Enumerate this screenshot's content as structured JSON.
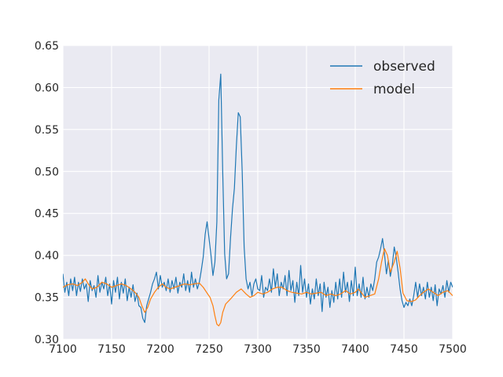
{
  "chart_data": {
    "type": "line",
    "title": "",
    "xlabel": "",
    "ylabel": "",
    "xlim": [
      7100,
      7500
    ],
    "ylim": [
      0.3,
      0.65
    ],
    "x_ticks": [
      7100,
      7150,
      7200,
      7250,
      7300,
      7350,
      7400,
      7450,
      7500
    ],
    "y_ticks": [
      0.3,
      0.35,
      0.4,
      0.45,
      0.5,
      0.55,
      0.6,
      0.65
    ],
    "x_tick_labels": [
      "7100",
      "7150",
      "7200",
      "7250",
      "7300",
      "7350",
      "7400",
      "7450",
      "7500"
    ],
    "y_tick_labels": [
      "0.30",
      "0.35",
      "0.40",
      "0.45",
      "0.50",
      "0.55",
      "0.60",
      "0.65"
    ],
    "grid": true,
    "legend_position": "top-right",
    "series": [
      {
        "name": "observed",
        "color": "#1f77b4",
        "points": [
          [
            7100,
            0.378
          ],
          [
            7102,
            0.356
          ],
          [
            7104,
            0.368
          ],
          [
            7106,
            0.352
          ],
          [
            7108,
            0.372
          ],
          [
            7110,
            0.358
          ],
          [
            7112,
            0.374
          ],
          [
            7114,
            0.352
          ],
          [
            7116,
            0.368
          ],
          [
            7118,
            0.357
          ],
          [
            7120,
            0.372
          ],
          [
            7122,
            0.36
          ],
          [
            7124,
            0.366
          ],
          [
            7126,
            0.345
          ],
          [
            7128,
            0.37
          ],
          [
            7130,
            0.358
          ],
          [
            7132,
            0.364
          ],
          [
            7134,
            0.35
          ],
          [
            7136,
            0.376
          ],
          [
            7138,
            0.356
          ],
          [
            7140,
            0.368
          ],
          [
            7142,
            0.36
          ],
          [
            7144,
            0.374
          ],
          [
            7146,
            0.352
          ],
          [
            7148,
            0.366
          ],
          [
            7150,
            0.342
          ],
          [
            7152,
            0.37
          ],
          [
            7154,
            0.356
          ],
          [
            7156,
            0.374
          ],
          [
            7158,
            0.348
          ],
          [
            7160,
            0.368
          ],
          [
            7162,
            0.355
          ],
          [
            7164,
            0.372
          ],
          [
            7166,
            0.346
          ],
          [
            7168,
            0.362
          ],
          [
            7170,
            0.35
          ],
          [
            7172,
            0.365
          ],
          [
            7174,
            0.345
          ],
          [
            7176,
            0.355
          ],
          [
            7178,
            0.34
          ],
          [
            7180,
            0.338
          ],
          [
            7182,
            0.325
          ],
          [
            7184,
            0.32
          ],
          [
            7186,
            0.34
          ],
          [
            7188,
            0.348
          ],
          [
            7190,
            0.356
          ],
          [
            7192,
            0.366
          ],
          [
            7194,
            0.372
          ],
          [
            7196,
            0.38
          ],
          [
            7198,
            0.36
          ],
          [
            7200,
            0.376
          ],
          [
            7202,
            0.362
          ],
          [
            7204,
            0.368
          ],
          [
            7206,
            0.358
          ],
          [
            7208,
            0.372
          ],
          [
            7210,
            0.356
          ],
          [
            7212,
            0.37
          ],
          [
            7214,
            0.36
          ],
          [
            7216,
            0.374
          ],
          [
            7218,
            0.355
          ],
          [
            7220,
            0.368
          ],
          [
            7222,
            0.362
          ],
          [
            7224,
            0.378
          ],
          [
            7226,
            0.358
          ],
          [
            7228,
            0.37
          ],
          [
            7230,
            0.356
          ],
          [
            7232,
            0.38
          ],
          [
            7234,
            0.362
          ],
          [
            7236,
            0.372
          ],
          [
            7238,
            0.36
          ],
          [
            7240,
            0.368
          ],
          [
            7242,
            0.382
          ],
          [
            7244,
            0.398
          ],
          [
            7246,
            0.425
          ],
          [
            7248,
            0.44
          ],
          [
            7250,
            0.42
          ],
          [
            7252,
            0.4
          ],
          [
            7254,
            0.376
          ],
          [
            7256,
            0.392
          ],
          [
            7258,
            0.44
          ],
          [
            7260,
            0.585
          ],
          [
            7262,
            0.616
          ],
          [
            7264,
            0.5
          ],
          [
            7266,
            0.402
          ],
          [
            7268,
            0.372
          ],
          [
            7270,
            0.378
          ],
          [
            7272,
            0.42
          ],
          [
            7274,
            0.455
          ],
          [
            7276,
            0.48
          ],
          [
            7278,
            0.53
          ],
          [
            7280,
            0.57
          ],
          [
            7282,
            0.565
          ],
          [
            7284,
            0.5
          ],
          [
            7286,
            0.41
          ],
          [
            7288,
            0.372
          ],
          [
            7290,
            0.36
          ],
          [
            7292,
            0.368
          ],
          [
            7294,
            0.352
          ],
          [
            7296,
            0.366
          ],
          [
            7298,
            0.372
          ],
          [
            7300,
            0.36
          ],
          [
            7302,
            0.358
          ],
          [
            7304,
            0.376
          ],
          [
            7306,
            0.35
          ],
          [
            7308,
            0.362
          ],
          [
            7310,
            0.358
          ],
          [
            7312,
            0.372
          ],
          [
            7314,
            0.356
          ],
          [
            7316,
            0.384
          ],
          [
            7318,
            0.362
          ],
          [
            7320,
            0.378
          ],
          [
            7322,
            0.352
          ],
          [
            7324,
            0.368
          ],
          [
            7326,
            0.36
          ],
          [
            7328,
            0.376
          ],
          [
            7330,
            0.352
          ],
          [
            7332,
            0.382
          ],
          [
            7334,
            0.358
          ],
          [
            7336,
            0.37
          ],
          [
            7338,
            0.344
          ],
          [
            7340,
            0.368
          ],
          [
            7342,
            0.352
          ],
          [
            7344,
            0.388
          ],
          [
            7346,
            0.356
          ],
          [
            7348,
            0.372
          ],
          [
            7350,
            0.35
          ],
          [
            7352,
            0.366
          ],
          [
            7354,
            0.342
          ],
          [
            7356,
            0.36
          ],
          [
            7358,
            0.348
          ],
          [
            7360,
            0.372
          ],
          [
            7362,
            0.352
          ],
          [
            7364,
            0.366
          ],
          [
            7366,
            0.333
          ],
          [
            7368,
            0.368
          ],
          [
            7370,
            0.35
          ],
          [
            7372,
            0.362
          ],
          [
            7374,
            0.338
          ],
          [
            7376,
            0.358
          ],
          [
            7378,
            0.344
          ],
          [
            7380,
            0.368
          ],
          [
            7382,
            0.348
          ],
          [
            7384,
            0.372
          ],
          [
            7386,
            0.35
          ],
          [
            7388,
            0.38
          ],
          [
            7390,
            0.356
          ],
          [
            7392,
            0.368
          ],
          [
            7394,
            0.345
          ],
          [
            7396,
            0.37
          ],
          [
            7398,
            0.352
          ],
          [
            7400,
            0.386
          ],
          [
            7402,
            0.352
          ],
          [
            7404,
            0.366
          ],
          [
            7406,
            0.35
          ],
          [
            7408,
            0.374
          ],
          [
            7410,
            0.348
          ],
          [
            7412,
            0.362
          ],
          [
            7414,
            0.35
          ],
          [
            7416,
            0.366
          ],
          [
            7418,
            0.358
          ],
          [
            7420,
            0.372
          ],
          [
            7422,
            0.392
          ],
          [
            7424,
            0.398
          ],
          [
            7426,
            0.408
          ],
          [
            7428,
            0.42
          ],
          [
            7430,
            0.402
          ],
          [
            7432,
            0.378
          ],
          [
            7434,
            0.394
          ],
          [
            7436,
            0.375
          ],
          [
            7438,
            0.388
          ],
          [
            7440,
            0.41
          ],
          [
            7442,
            0.398
          ],
          [
            7444,
            0.38
          ],
          [
            7446,
            0.36
          ],
          [
            7448,
            0.346
          ],
          [
            7450,
            0.338
          ],
          [
            7452,
            0.344
          ],
          [
            7454,
            0.34
          ],
          [
            7456,
            0.348
          ],
          [
            7458,
            0.34
          ],
          [
            7460,
            0.352
          ],
          [
            7462,
            0.368
          ],
          [
            7464,
            0.35
          ],
          [
            7466,
            0.366
          ],
          [
            7468,
            0.352
          ],
          [
            7470,
            0.362
          ],
          [
            7472,
            0.348
          ],
          [
            7474,
            0.368
          ],
          [
            7476,
            0.35
          ],
          [
            7478,
            0.362
          ],
          [
            7480,
            0.346
          ],
          [
            7482,
            0.365
          ],
          [
            7484,
            0.34
          ],
          [
            7486,
            0.36
          ],
          [
            7488,
            0.354
          ],
          [
            7490,
            0.364
          ],
          [
            7492,
            0.35
          ],
          [
            7494,
            0.37
          ],
          [
            7496,
            0.356
          ],
          [
            7498,
            0.368
          ],
          [
            7500,
            0.362
          ]
        ]
      },
      {
        "name": "model",
        "color": "#ff7f0e",
        "points": [
          [
            7100,
            0.362
          ],
          [
            7105,
            0.365
          ],
          [
            7110,
            0.366
          ],
          [
            7115,
            0.364
          ],
          [
            7120,
            0.368
          ],
          [
            7123,
            0.372
          ],
          [
            7126,
            0.366
          ],
          [
            7130,
            0.36
          ],
          [
            7135,
            0.362
          ],
          [
            7140,
            0.368
          ],
          [
            7145,
            0.366
          ],
          [
            7150,
            0.362
          ],
          [
            7155,
            0.364
          ],
          [
            7160,
            0.366
          ],
          [
            7165,
            0.364
          ],
          [
            7170,
            0.36
          ],
          [
            7174,
            0.356
          ],
          [
            7178,
            0.35
          ],
          [
            7181,
            0.34
          ],
          [
            7184,
            0.332
          ],
          [
            7187,
            0.338
          ],
          [
            7190,
            0.348
          ],
          [
            7194,
            0.356
          ],
          [
            7198,
            0.362
          ],
          [
            7202,
            0.366
          ],
          [
            7206,
            0.362
          ],
          [
            7210,
            0.36
          ],
          [
            7215,
            0.362
          ],
          [
            7220,
            0.364
          ],
          [
            7225,
            0.366
          ],
          [
            7230,
            0.365
          ],
          [
            7235,
            0.366
          ],
          [
            7240,
            0.367
          ],
          [
            7244,
            0.362
          ],
          [
            7248,
            0.355
          ],
          [
            7251,
            0.35
          ],
          [
            7254,
            0.34
          ],
          [
            7256,
            0.328
          ],
          [
            7258,
            0.318
          ],
          [
            7260,
            0.316
          ],
          [
            7262,
            0.32
          ],
          [
            7264,
            0.332
          ],
          [
            7267,
            0.342
          ],
          [
            7272,
            0.348
          ],
          [
            7278,
            0.356
          ],
          [
            7283,
            0.36
          ],
          [
            7288,
            0.354
          ],
          [
            7292,
            0.35
          ],
          [
            7296,
            0.352
          ],
          [
            7300,
            0.356
          ],
          [
            7305,
            0.354
          ],
          [
            7310,
            0.356
          ],
          [
            7315,
            0.36
          ],
          [
            7320,
            0.362
          ],
          [
            7325,
            0.362
          ],
          [
            7330,
            0.358
          ],
          [
            7335,
            0.356
          ],
          [
            7340,
            0.355
          ],
          [
            7345,
            0.354
          ],
          [
            7350,
            0.356
          ],
          [
            7355,
            0.354
          ],
          [
            7360,
            0.355
          ],
          [
            7365,
            0.356
          ],
          [
            7370,
            0.352
          ],
          [
            7375,
            0.354
          ],
          [
            7380,
            0.352
          ],
          [
            7385,
            0.354
          ],
          [
            7390,
            0.358
          ],
          [
            7395,
            0.354
          ],
          [
            7400,
            0.356
          ],
          [
            7403,
            0.36
          ],
          [
            7406,
            0.356
          ],
          [
            7410,
            0.35
          ],
          [
            7415,
            0.352
          ],
          [
            7420,
            0.354
          ],
          [
            7424,
            0.372
          ],
          [
            7427,
            0.392
          ],
          [
            7430,
            0.408
          ],
          [
            7433,
            0.4
          ],
          [
            7436,
            0.38
          ],
          [
            7440,
            0.392
          ],
          [
            7443,
            0.405
          ],
          [
            7446,
            0.385
          ],
          [
            7449,
            0.355
          ],
          [
            7453,
            0.346
          ],
          [
            7458,
            0.345
          ],
          [
            7462,
            0.347
          ],
          [
            7466,
            0.352
          ],
          [
            7470,
            0.356
          ],
          [
            7475,
            0.36
          ],
          [
            7480,
            0.356
          ],
          [
            7485,
            0.352
          ],
          [
            7490,
            0.356
          ],
          [
            7495,
            0.358
          ],
          [
            7500,
            0.352
          ]
        ]
      }
    ]
  }
}
